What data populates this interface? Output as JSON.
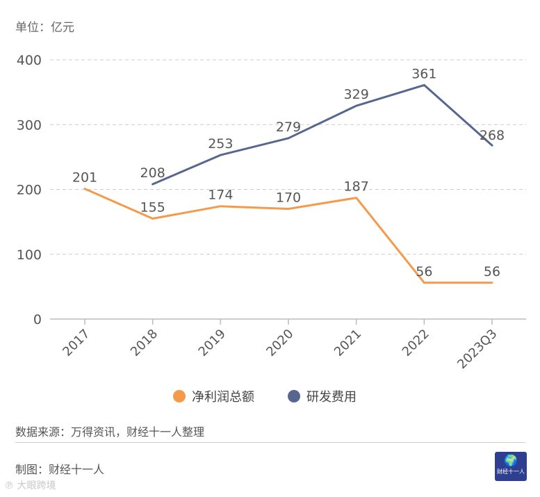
{
  "unit_label": "单位：亿元",
  "source_text": "数据来源：万得资讯，财经十一人整理",
  "maker_text": "制图：财经十一人",
  "logo": {
    "icon": "globe-runner-icon",
    "text": "财经十一人"
  },
  "watermark": "℗ 大眼跨境",
  "colors": {
    "net_profit": "#f39a4b",
    "rd": "#56668f",
    "grid": "#cccccc",
    "axis": "#bbbbbb"
  },
  "chart_data": {
    "type": "line",
    "categories": [
      "2017",
      "2018",
      "2019",
      "2020",
      "2021",
      "2022",
      "2023Q3"
    ],
    "series": [
      {
        "name": "净利润总额",
        "values": [
          201,
          155,
          174,
          170,
          187,
          56,
          56
        ]
      },
      {
        "name": "研发费用",
        "values": [
          null,
          208,
          253,
          279,
          329,
          361,
          268
        ]
      }
    ],
    "yticks": [
      0,
      100,
      200,
      300,
      400
    ],
    "ylim": [
      0,
      400
    ],
    "grid": true,
    "legend": "bottom-center",
    "ylabel": "单位：亿元",
    "xlabel": ""
  }
}
